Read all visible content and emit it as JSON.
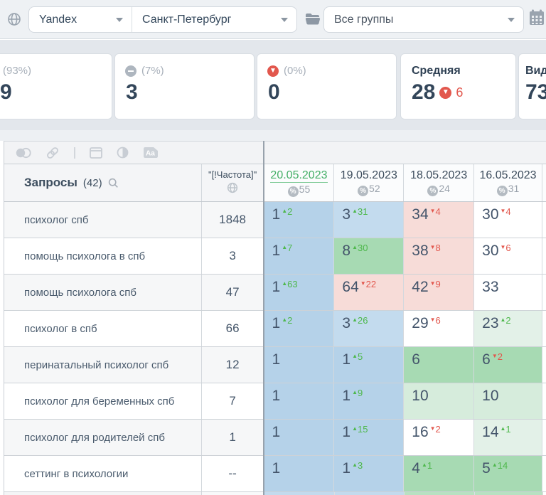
{
  "topbar": {
    "search_engine": "Yandex",
    "region": "Санкт-Петербург",
    "groups": "Все группы"
  },
  "summary": {
    "up": {
      "percent": "(93%)",
      "value": "9"
    },
    "stable": {
      "percent": "(7%)",
      "value": "3"
    },
    "down": {
      "percent": "(0%)",
      "value": "0"
    },
    "average": {
      "label": "Средняя",
      "value": "28",
      "delta": "6",
      "delta_dir": "down"
    },
    "visibility": {
      "label": "Вид",
      "value": "73"
    }
  },
  "table": {
    "queries_header": "Запросы",
    "queries_count": "(42)",
    "frequency_header": "\"[!Частота]\"",
    "dates": [
      {
        "date": "20.05.2023",
        "visibility": "55",
        "active": true
      },
      {
        "date": "19.05.2023",
        "visibility": "52",
        "active": false
      },
      {
        "date": "18.05.2023",
        "visibility": "24",
        "active": false
      },
      {
        "date": "16.05.2023",
        "visibility": "31",
        "active": false
      }
    ],
    "rows": [
      {
        "query": "психолог спб",
        "frequency": "1848",
        "cells": [
          {
            "pos": "1",
            "delta": "2",
            "dir": "up",
            "bg": "blue1"
          },
          {
            "pos": "3",
            "delta": "31",
            "dir": "up",
            "bg": "blue2"
          },
          {
            "pos": "34",
            "delta": "4",
            "dir": "down",
            "bg": "pink"
          },
          {
            "pos": "30",
            "delta": "4",
            "dir": "down",
            "bg": "white"
          }
        ]
      },
      {
        "query": "помощь психолога в спб",
        "frequency": "3",
        "cells": [
          {
            "pos": "1",
            "delta": "7",
            "dir": "up",
            "bg": "blue1"
          },
          {
            "pos": "8",
            "delta": "30",
            "dir": "up",
            "bg": "green"
          },
          {
            "pos": "38",
            "delta": "8",
            "dir": "down",
            "bg": "pink"
          },
          {
            "pos": "30",
            "delta": "6",
            "dir": "down",
            "bg": "white"
          }
        ]
      },
      {
        "query": "помощь психолога спб",
        "frequency": "47",
        "cells": [
          {
            "pos": "1",
            "delta": "63",
            "dir": "up",
            "bg": "blue1"
          },
          {
            "pos": "64",
            "delta": "22",
            "dir": "down",
            "bg": "pink"
          },
          {
            "pos": "42",
            "delta": "9",
            "dir": "down",
            "bg": "pink"
          },
          {
            "pos": "33",
            "delta": "",
            "dir": "",
            "bg": "white"
          }
        ]
      },
      {
        "query": "психолог в спб",
        "frequency": "66",
        "cells": [
          {
            "pos": "1",
            "delta": "2",
            "dir": "up",
            "bg": "blue1"
          },
          {
            "pos": "3",
            "delta": "26",
            "dir": "up",
            "bg": "blue2"
          },
          {
            "pos": "29",
            "delta": "6",
            "dir": "down",
            "bg": "white"
          },
          {
            "pos": "23",
            "delta": "2",
            "dir": "up",
            "bg": "green3"
          }
        ]
      },
      {
        "query": "перинатальный психолог спб",
        "frequency": "12",
        "cells": [
          {
            "pos": "1",
            "delta": "",
            "dir": "",
            "bg": "blue1"
          },
          {
            "pos": "1",
            "delta": "5",
            "dir": "up",
            "bg": "blue1"
          },
          {
            "pos": "6",
            "delta": "",
            "dir": "",
            "bg": "green"
          },
          {
            "pos": "6",
            "delta": "2",
            "dir": "down",
            "bg": "green"
          }
        ]
      },
      {
        "query": "психолог для беременных спб",
        "frequency": "7",
        "cells": [
          {
            "pos": "1",
            "delta": "",
            "dir": "",
            "bg": "blue1"
          },
          {
            "pos": "1",
            "delta": "9",
            "dir": "up",
            "bg": "blue1"
          },
          {
            "pos": "10",
            "delta": "",
            "dir": "",
            "bg": "green2"
          },
          {
            "pos": "10",
            "delta": "",
            "dir": "",
            "bg": "green2"
          }
        ]
      },
      {
        "query": "психолог для родителей спб",
        "frequency": "1",
        "cells": [
          {
            "pos": "1",
            "delta": "",
            "dir": "",
            "bg": "blue1"
          },
          {
            "pos": "1",
            "delta": "15",
            "dir": "up",
            "bg": "blue1"
          },
          {
            "pos": "16",
            "delta": "2",
            "dir": "down",
            "bg": "white"
          },
          {
            "pos": "14",
            "delta": "1",
            "dir": "up",
            "bg": "green3"
          }
        ]
      },
      {
        "query": "сеттинг в психологии",
        "frequency": "--",
        "cells": [
          {
            "pos": "1",
            "delta": "",
            "dir": "",
            "bg": "blue1"
          },
          {
            "pos": "1",
            "delta": "3",
            "dir": "up",
            "bg": "blue1"
          },
          {
            "pos": "4",
            "delta": "1",
            "dir": "up",
            "bg": "green"
          },
          {
            "pos": "5",
            "delta": "14",
            "dir": "up",
            "bg": "green"
          }
        ]
      }
    ],
    "partial_row_cells": [
      "blue1",
      "blue1",
      "green",
      "green"
    ]
  },
  "palette": {
    "blue1": "#b5d2e9",
    "blue2": "#c3dbee",
    "green": "#a7dab3",
    "green2": "#d6ecdc",
    "green3": "#e3f1e8",
    "pink": "#f7dcd8",
    "white": "#ffffff",
    "delta_up": "#4eb84c",
    "delta_down": "#e2574d",
    "accent_green": "#43ae66"
  }
}
